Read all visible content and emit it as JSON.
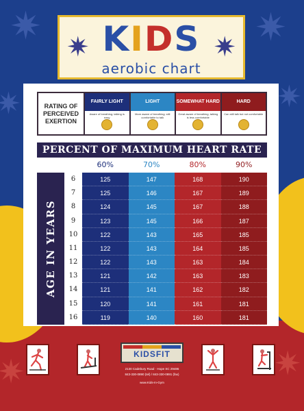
{
  "title": {
    "main": "KIDS",
    "sub": "aerobic chart"
  },
  "rpe": {
    "label": "RATING OF PERCEIVED EXERTION",
    "columns": [
      {
        "label": "FAIRLY LIGHT",
        "color": "#1d2f7a",
        "desc": "Aware of breathing; talking is easy"
      },
      {
        "label": "LIGHT",
        "color": "#2c86c4",
        "desc": "More aware of breathing; still comfortable to talk"
      },
      {
        "label": "SOMEWHAT HARD",
        "color": "#b3262a",
        "desc": "Great aware of breathing; talking is less comfortable"
      },
      {
        "label": "HARD",
        "color": "#8f1c1e",
        "desc": "Can still talk but not comfortable"
      }
    ]
  },
  "heart_rate": {
    "title": "PERCENT OF MAXIMUM HEART RATE",
    "age_label": "AGE IN YEARS",
    "columns": [
      {
        "pct": "60%",
        "color": "#1d2f7a"
      },
      {
        "pct": "70%",
        "color": "#2c86c4"
      },
      {
        "pct": "80%",
        "color": "#b3262a"
      },
      {
        "pct": "90%",
        "color": "#8f1c1e"
      }
    ],
    "rows": [
      {
        "age": "6",
        "values": [
          "125",
          "147",
          "168",
          "190"
        ]
      },
      {
        "age": "7",
        "values": [
          "125",
          "146",
          "167",
          "189"
        ]
      },
      {
        "age": "8",
        "values": [
          "124",
          "145",
          "167",
          "188"
        ]
      },
      {
        "age": "9",
        "values": [
          "123",
          "145",
          "166",
          "187"
        ]
      },
      {
        "age": "10",
        "values": [
          "122",
          "143",
          "165",
          "185"
        ]
      },
      {
        "age": "11",
        "values": [
          "122",
          "143",
          "164",
          "185"
        ]
      },
      {
        "age": "12",
        "values": [
          "122",
          "143",
          "163",
          "184"
        ]
      },
      {
        "age": "13",
        "values": [
          "121",
          "142",
          "163",
          "183"
        ]
      },
      {
        "age": "14",
        "values": [
          "121",
          "141",
          "162",
          "182"
        ]
      },
      {
        "age": "15",
        "values": [
          "120",
          "141",
          "161",
          "181"
        ]
      },
      {
        "age": "16",
        "values": [
          "119",
          "140",
          "160",
          "181"
        ]
      }
    ]
  },
  "footer": {
    "logo": "KIDSFIT",
    "address_1": "2130 Cadebury Road · Hope SC 29486",
    "address_2": "843-330-0890 (tel) / 843-330-0891 (fax)",
    "website": "www.Kids-In-Gym"
  },
  "icons": [
    "running-child-icon",
    "treadmill-child-icon",
    "climbing-child-icon",
    "stepper-child-icon"
  ],
  "colors": {
    "background": "#1c3f8c",
    "bottom_band": "#b3262a",
    "accent_yellow": "#f2c11c",
    "title_border": "#e6b92e",
    "header_dark": "#2a2350"
  }
}
